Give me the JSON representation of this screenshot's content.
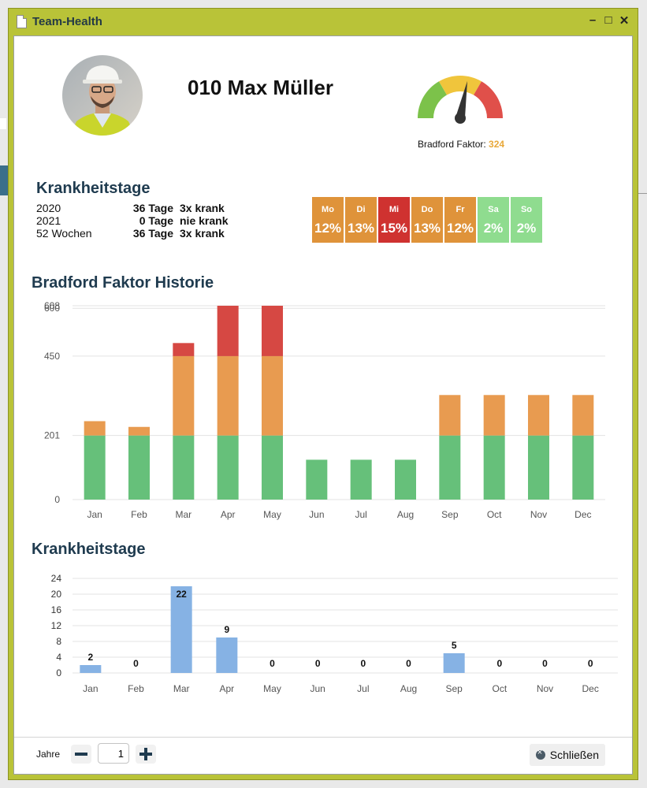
{
  "window": {
    "title": "Team-Health",
    "controls": {
      "minimize": "–",
      "maximize": "□",
      "close": "✕"
    }
  },
  "employee": {
    "name": "010 Max Müller"
  },
  "gauge": {
    "label": "Bradford Faktor:",
    "value": "324",
    "colors": [
      "#7cc24a",
      "#f0c53c",
      "#e0504a"
    ],
    "needle_fraction": 0.56
  },
  "sick_summary": {
    "title": "Krankheitstage",
    "rows": [
      {
        "period": "2020",
        "days": "36 Tage",
        "freq": "3x krank"
      },
      {
        "period": "2021",
        "days": "0 Tage",
        "freq": "nie krank"
      },
      {
        "period": "52 Wochen",
        "days": "36 Tage",
        "freq": "3x krank"
      }
    ]
  },
  "weekdays": [
    {
      "day": "Mo",
      "pct": "12%",
      "color": "#df933a"
    },
    {
      "day": "Di",
      "pct": "13%",
      "color": "#df933a"
    },
    {
      "day": "Mi",
      "pct": "15%",
      "color": "#cf3230"
    },
    {
      "day": "Do",
      "pct": "13%",
      "color": "#df933a"
    },
    {
      "day": "Fr",
      "pct": "12%",
      "color": "#df933a"
    },
    {
      "day": "Sa",
      "pct": "2%",
      "color": "#8fdc8f"
    },
    {
      "day": "So",
      "pct": "2%",
      "color": "#8fdc8f"
    }
  ],
  "bradford_history": {
    "title": "Bradford Faktor Historie",
    "chart_data": {
      "type": "bar",
      "stacked": true,
      "categories": [
        "Jan",
        "Feb",
        "Mar",
        "Apr",
        "May",
        "Jun",
        "Jul",
        "Aug",
        "Sep",
        "Oct",
        "Nov",
        "Dec"
      ],
      "series": [
        {
          "color": "#66c07a",
          "values": [
            201,
            201,
            201,
            201,
            201,
            125,
            125,
            125,
            201,
            201,
            201,
            201
          ]
        },
        {
          "color": "#e89b50",
          "values": [
            45,
            27,
            249,
            249,
            249,
            0,
            0,
            0,
            127,
            127,
            127,
            127
          ]
        },
        {
          "color": "#d64843",
          "values": [
            0,
            0,
            41,
            158,
            158,
            0,
            0,
            0,
            0,
            0,
            0,
            0
          ]
        }
      ],
      "yticks": [
        "0",
        "201",
        "450",
        "600",
        "608"
      ],
      "ytick_values": [
        0,
        201,
        450,
        600,
        608
      ],
      "ylim": [
        0,
        608
      ],
      "grid": true
    }
  },
  "sick_days_chart": {
    "title": "Krankheitstage",
    "chart_data": {
      "type": "bar",
      "categories": [
        "Jan",
        "Feb",
        "Mar",
        "Apr",
        "May",
        "Jun",
        "Jul",
        "Aug",
        "Sep",
        "Oct",
        "Nov",
        "Dec"
      ],
      "values": [
        2,
        0,
        22,
        9,
        0,
        0,
        0,
        0,
        5,
        0,
        0,
        0
      ],
      "value_labels": [
        "2",
        "0",
        "22",
        "9",
        "0",
        "0",
        "0",
        "0",
        "5",
        "0",
        "0",
        "0"
      ],
      "yticks": [
        "0",
        "4",
        "8",
        "12",
        "16",
        "20",
        "24"
      ],
      "ylim": [
        0,
        24
      ],
      "color": "#86b2e4",
      "grid": true
    }
  },
  "footer": {
    "years_label": "Jahre",
    "years_value": "1",
    "close_label": "Schließen"
  }
}
